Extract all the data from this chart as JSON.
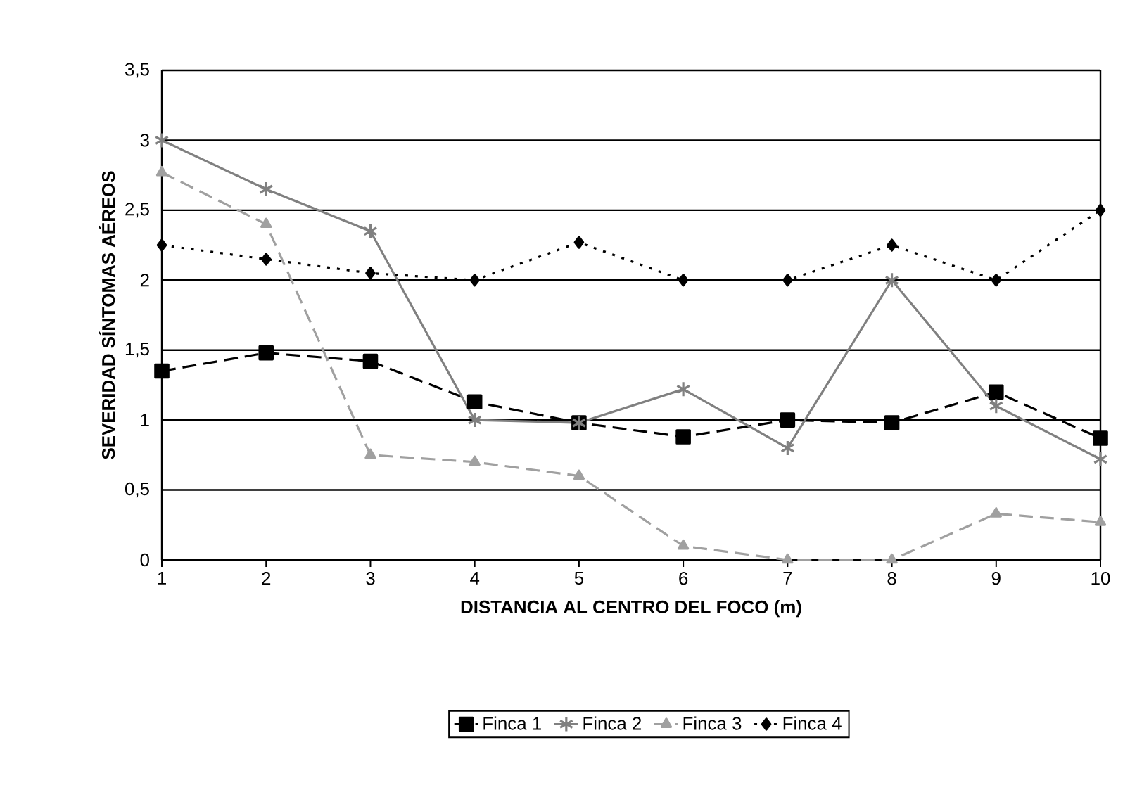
{
  "chart_data": {
    "type": "line",
    "xlabel": "DISTANCIA AL CENTRO DEL FOCO (m)",
    "ylabel": "SEVERIDAD SÍNTOMAS AÉREOS",
    "x": [
      1,
      2,
      3,
      4,
      5,
      6,
      7,
      8,
      9,
      10
    ],
    "xlim": [
      1,
      10
    ],
    "xticks": [
      1,
      2,
      3,
      4,
      5,
      6,
      7,
      8,
      9,
      10
    ],
    "ylim": [
      0,
      3.5
    ],
    "yticks": [
      0,
      {
        "value": 0.5,
        "label": "0,5"
      },
      1,
      {
        "value": 1.5,
        "label": "1,5"
      },
      2,
      {
        "value": 2.5,
        "label": "2,5"
      },
      3,
      {
        "value": 3.5,
        "label": "3,5"
      }
    ],
    "grid": "y",
    "legend": "bottom",
    "series": [
      {
        "name": "Finca 1",
        "color": "#000000",
        "marker": "square",
        "line_style": "dashed",
        "values": [
          1.35,
          1.48,
          1.42,
          1.13,
          0.98,
          0.88,
          1.0,
          0.98,
          1.2,
          0.87
        ]
      },
      {
        "name": "Finca 2",
        "color": "#808080",
        "marker": "cross",
        "line_style": "solid",
        "values": [
          3.0,
          2.65,
          2.35,
          1.0,
          0.98,
          1.22,
          0.8,
          2.0,
          1.1,
          0.72
        ]
      },
      {
        "name": "Finca 3",
        "color": "#a0a0a0",
        "marker": "triangle",
        "line_style": "dashed",
        "values": [
          2.77,
          2.4,
          0.75,
          0.7,
          0.6,
          0.1,
          0,
          0,
          0.33,
          0.27
        ]
      },
      {
        "name": "Finca 4",
        "color": "#000000",
        "marker": "diamond",
        "line_style": "dotted",
        "values": [
          2.25,
          2.15,
          2.05,
          2.0,
          2.27,
          2.0,
          2.0,
          2.25,
          2.0,
          2.5
        ]
      }
    ]
  }
}
